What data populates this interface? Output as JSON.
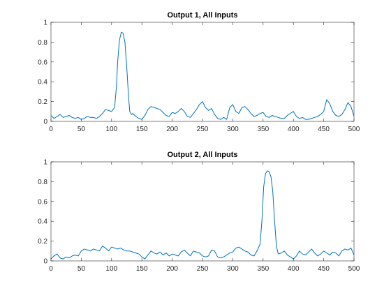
{
  "chart_data": [
    {
      "type": "line",
      "title": "Output 1, All Inputs",
      "xlabel": "",
      "ylabel": "",
      "xlim": [
        0,
        500
      ],
      "ylim": [
        0,
        1
      ],
      "xticks": [
        0,
        50,
        100,
        150,
        200,
        250,
        300,
        350,
        400,
        450,
        500
      ],
      "xtick_labels": [
        "0",
        "50",
        "100",
        "150",
        "200",
        "250",
        "300",
        "350",
        "400",
        "450",
        "500"
      ],
      "yticks": [
        0,
        0.2,
        0.4,
        0.6,
        0.8,
        1
      ],
      "ytick_labels": [
        "0",
        "0.2",
        "0.4",
        "0.6",
        "0.8",
        "1"
      ],
      "grid": false,
      "color": "#0072bd",
      "series": [
        {
          "x": [
            0,
            5,
            10,
            15,
            20,
            25,
            30,
            35,
            40,
            45,
            50,
            55,
            60,
            65,
            70,
            75,
            80,
            85,
            90,
            95,
            100,
            105,
            108,
            110,
            113,
            116,
            119,
            122,
            125,
            128,
            130,
            133,
            135,
            140,
            145,
            150,
            155,
            160,
            165,
            170,
            175,
            180,
            185,
            190,
            195,
            200,
            205,
            210,
            215,
            220,
            225,
            230,
            235,
            240,
            245,
            250,
            255,
            260,
            265,
            270,
            275,
            280,
            285,
            290,
            295,
            300,
            305,
            310,
            315,
            320,
            325,
            330,
            335,
            340,
            345,
            350,
            355,
            360,
            365,
            370,
            375,
            380,
            385,
            390,
            395,
            400,
            405,
            410,
            415,
            420,
            425,
            430,
            435,
            440,
            445,
            450,
            455,
            460,
            465,
            470,
            475,
            480,
            485,
            490,
            495,
            500
          ],
          "y": [
            0.06,
            0.03,
            0.05,
            0.07,
            0.04,
            0.05,
            0.06,
            0.04,
            0.03,
            0.04,
            0.02,
            0.03,
            0.05,
            0.04,
            0.04,
            0.03,
            0.05,
            0.08,
            0.12,
            0.11,
            0.1,
            0.14,
            0.35,
            0.6,
            0.82,
            0.9,
            0.89,
            0.8,
            0.55,
            0.25,
            0.1,
            0.07,
            0.08,
            0.05,
            0.03,
            0.02,
            0.06,
            0.12,
            0.15,
            0.14,
            0.13,
            0.12,
            0.09,
            0.06,
            0.05,
            0.09,
            0.08,
            0.1,
            0.13,
            0.1,
            0.05,
            0.04,
            0.08,
            0.12,
            0.17,
            0.2,
            0.14,
            0.11,
            0.13,
            0.07,
            0.03,
            0.02,
            0.04,
            0.02,
            0.14,
            0.17,
            0.1,
            0.08,
            0.14,
            0.15,
            0.12,
            0.08,
            0.05,
            0.06,
            0.08,
            0.09,
            0.05,
            0.04,
            0.06,
            0.05,
            0.04,
            0.03,
            0.03,
            0.06,
            0.08,
            0.1,
            0.05,
            0.03,
            0.04,
            0.02,
            0.02,
            0.03,
            0.04,
            0.05,
            0.07,
            0.1,
            0.22,
            0.18,
            0.1,
            0.06,
            0.05,
            0.07,
            0.12,
            0.19,
            0.15,
            0.05
          ]
        }
      ]
    },
    {
      "type": "line",
      "title": "Output 2, All Inputs",
      "xlabel": "",
      "ylabel": "",
      "xlim": [
        0,
        500
      ],
      "ylim": [
        0,
        1
      ],
      "xticks": [
        0,
        50,
        100,
        150,
        200,
        250,
        300,
        350,
        400,
        450,
        500
      ],
      "xtick_labels": [
        "0",
        "50",
        "100",
        "150",
        "200",
        "250",
        "300",
        "350",
        "400",
        "450",
        "500"
      ],
      "yticks": [
        0,
        0.2,
        0.4,
        0.6,
        0.8,
        1
      ],
      "ytick_labels": [
        "0",
        "0.2",
        "0.4",
        "0.6",
        "0.8",
        "1"
      ],
      "grid": false,
      "color": "#0072bd",
      "series": [
        {
          "x": [
            0,
            5,
            10,
            15,
            20,
            25,
            30,
            35,
            40,
            45,
            50,
            55,
            60,
            65,
            70,
            75,
            80,
            85,
            90,
            95,
            100,
            105,
            110,
            115,
            120,
            125,
            130,
            135,
            140,
            145,
            150,
            155,
            160,
            165,
            170,
            175,
            180,
            185,
            190,
            195,
            200,
            205,
            210,
            215,
            220,
            225,
            230,
            235,
            240,
            245,
            250,
            255,
            260,
            265,
            270,
            275,
            280,
            285,
            290,
            295,
            300,
            305,
            310,
            315,
            320,
            325,
            330,
            335,
            340,
            345,
            348,
            351,
            354,
            357,
            360,
            363,
            366,
            369,
            372,
            375,
            380,
            385,
            390,
            395,
            400,
            405,
            410,
            415,
            420,
            425,
            430,
            435,
            440,
            445,
            450,
            455,
            460,
            465,
            470,
            475,
            480,
            485,
            490,
            495,
            500
          ],
          "y": [
            0.02,
            0.05,
            0.07,
            0.03,
            0.02,
            0.04,
            0.03,
            0.05,
            0.06,
            0.05,
            0.1,
            0.12,
            0.11,
            0.1,
            0.12,
            0.11,
            0.1,
            0.15,
            0.13,
            0.1,
            0.14,
            0.13,
            0.12,
            0.13,
            0.11,
            0.1,
            0.1,
            0.09,
            0.08,
            0.07,
            0.04,
            0.02,
            0.06,
            0.1,
            0.08,
            0.07,
            0.09,
            0.06,
            0.08,
            0.05,
            0.07,
            0.06,
            0.05,
            0.09,
            0.11,
            0.08,
            0.05,
            0.1,
            0.09,
            0.08,
            0.05,
            0.04,
            0.05,
            0.11,
            0.1,
            0.04,
            0.03,
            0.04,
            0.06,
            0.08,
            0.09,
            0.13,
            0.14,
            0.12,
            0.1,
            0.09,
            0.06,
            0.05,
            0.1,
            0.17,
            0.4,
            0.75,
            0.88,
            0.91,
            0.9,
            0.85,
            0.7,
            0.4,
            0.15,
            0.07,
            0.08,
            0.1,
            0.06,
            0.04,
            0.02,
            0.05,
            0.1,
            0.07,
            0.06,
            0.09,
            0.12,
            0.08,
            0.05,
            0.07,
            0.1,
            0.08,
            0.06,
            0.09,
            0.08,
            0.05,
            0.1,
            0.12,
            0.11,
            0.13,
            0.06
          ]
        }
      ]
    }
  ]
}
